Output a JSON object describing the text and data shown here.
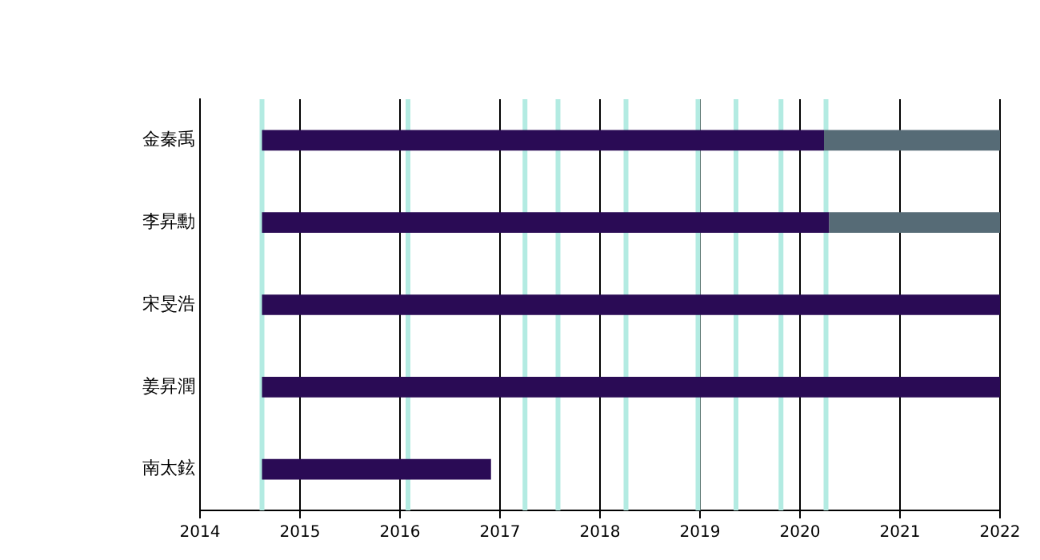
{
  "chart_data": {
    "type": "bar",
    "orientation": "horizontal",
    "categories": [
      "金秦禹",
      "李昇勳",
      "宋旻浩",
      "姜昇潤",
      "南太鉉"
    ],
    "series": [
      {
        "color": "#2a0b55",
        "base": [
          2014.62,
          2014.62,
          2014.62,
          2014.62,
          2014.62
        ],
        "values": [
          5.62,
          5.67,
          7.38,
          7.38,
          2.29
        ]
      },
      {
        "color": "#566b76",
        "base": [
          2020.24,
          2020.29,
          null,
          null,
          null
        ],
        "values": [
          1.76,
          1.71,
          null,
          null,
          null
        ]
      }
    ],
    "xlim": [
      2014,
      2022
    ],
    "xticks": [
      2014,
      2015,
      2016,
      2017,
      2018,
      2019,
      2020,
      2021,
      2022
    ],
    "grid": "x",
    "legend": false,
    "ref_lines": [
      {
        "axis": "x",
        "value": 2014.62,
        "color": "#b3ebe2"
      },
      {
        "axis": "x",
        "value": 2016.08,
        "color": "#b3ebe2"
      },
      {
        "axis": "x",
        "value": 2017.25,
        "color": "#b3ebe2"
      },
      {
        "axis": "x",
        "value": 2017.58,
        "color": "#b3ebe2"
      },
      {
        "axis": "x",
        "value": 2018.26,
        "color": "#b3ebe2"
      },
      {
        "axis": "x",
        "value": 2018.98,
        "color": "#b3ebe2"
      },
      {
        "axis": "x",
        "value": 2019.36,
        "color": "#b3ebe2"
      },
      {
        "axis": "x",
        "value": 2019.81,
        "color": "#b3ebe2"
      },
      {
        "axis": "x",
        "value": 2020.26,
        "color": "#b3ebe2"
      }
    ]
  }
}
